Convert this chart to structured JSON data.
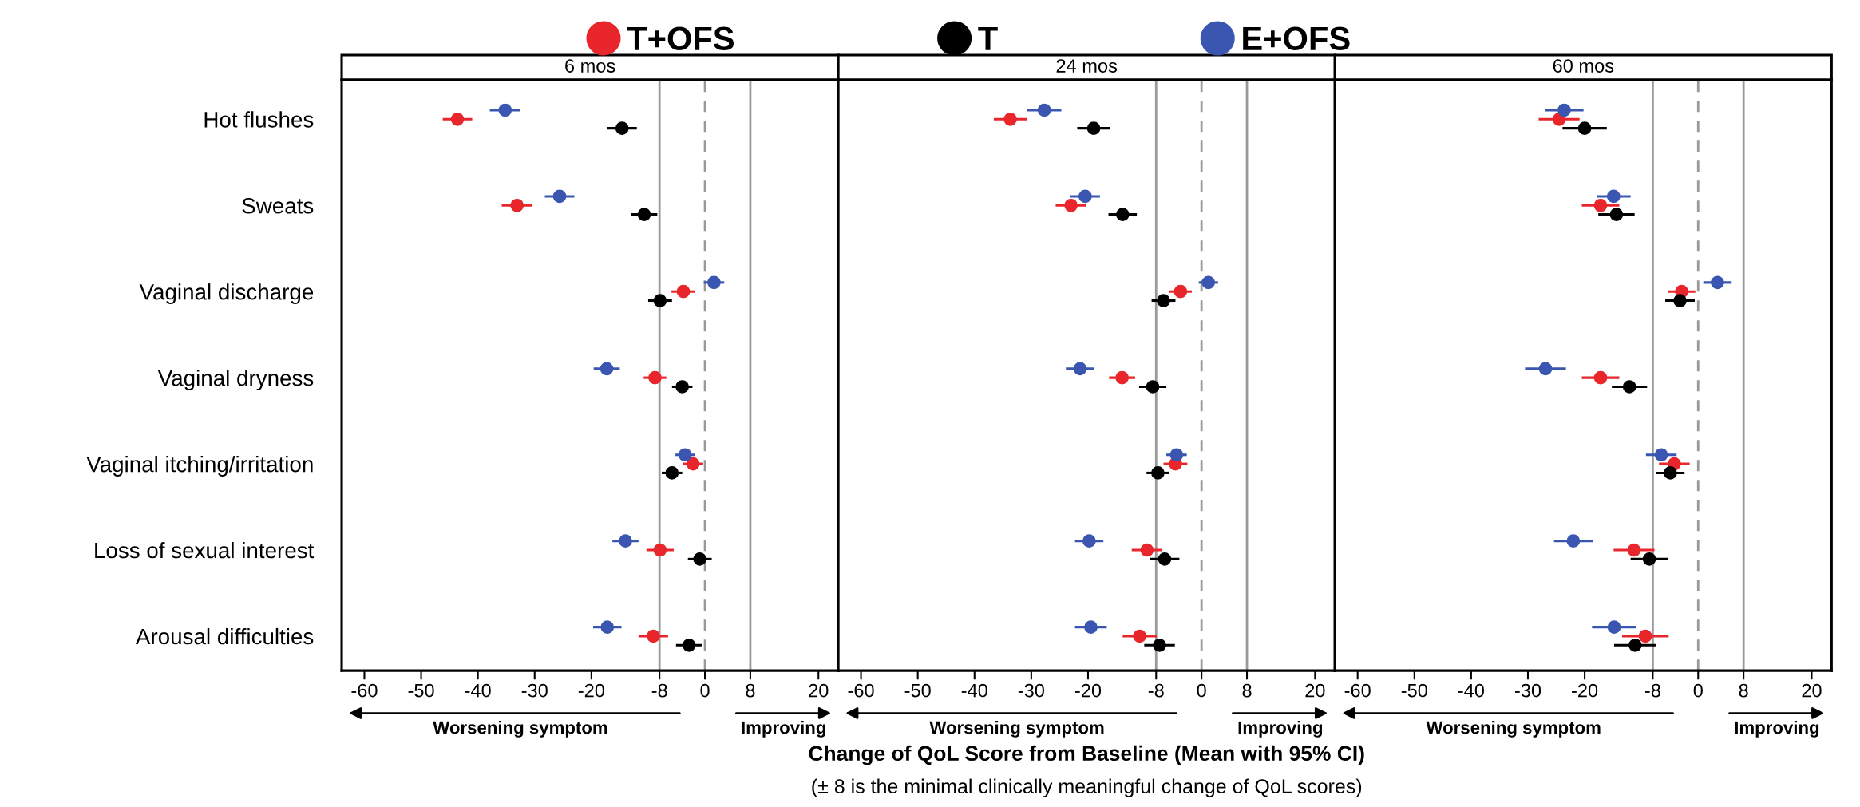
{
  "chart_data": [
    {
      "type": "scatter",
      "orientation": "horizontal",
      "title": "6 mos",
      "marker": "circle",
      "legend": "top",
      "categories": [
        "Hot flushes",
        "Sweats",
        "Vaginal discharge",
        "Vaginal dryness",
        "Vaginal itching/irritation",
        "Loss of sexual interest",
        "Arousal difficulties"
      ],
      "series": [
        {
          "name": "T+OFS",
          "color": "#e8262b",
          "values": [
            -43.6,
            -33.1,
            -3.8,
            -8.8,
            -2.1,
            -7.9,
            -9.1
          ],
          "errors": [
            2.6,
            2.7,
            2.1,
            2.0,
            1.8,
            2.4,
            2.6
          ]
        },
        {
          "name": "T",
          "color": "#000000",
          "values": [
            -14.6,
            -10.7,
            -7.9,
            -4.0,
            -5.8,
            -0.9,
            -2.8
          ],
          "errors": [
            2.6,
            2.3,
            2.1,
            1.8,
            1.8,
            2.1,
            2.3
          ]
        },
        {
          "name": "E+OFS",
          "color": "#3a56b0",
          "values": [
            -35.2,
            -25.6,
            1.6,
            -17.3,
            -3.5,
            -14.0,
            -17.2
          ],
          "errors": [
            2.7,
            2.6,
            1.8,
            2.3,
            1.7,
            2.3,
            2.5
          ]
        }
      ],
      "xlim": [
        -64,
        23.5
      ],
      "xticks": [
        -60,
        -50,
        -40,
        -30,
        -20,
        -8,
        0,
        8,
        20
      ],
      "ref_lines": [
        {
          "axis": "x",
          "value": -8,
          "color": "#999999"
        },
        {
          "axis": "x",
          "value": 0,
          "color": "#999999",
          "line_style": "dashed"
        },
        {
          "axis": "x",
          "value": 8,
          "color": "#999999"
        }
      ],
      "annotations": [
        "Worsening symptom",
        "Improving"
      ]
    },
    {
      "type": "scatter",
      "orientation": "horizontal",
      "title": "24 mos",
      "marker": "circle",
      "xlabel": "Change of QoL Score from Baseline (Mean with 95% CI)",
      "categories": [
        null,
        null,
        null,
        null,
        null,
        null,
        null
      ],
      "series": [
        {
          "color": "#e8262b",
          "values": [
            -33.7,
            -23.0,
            -3.7,
            -14.0,
            -4.6,
            -9.6,
            -10.9
          ],
          "errors": [
            2.9,
            2.7,
            2.0,
            2.3,
            2.1,
            2.7,
            3.0
          ]
        },
        {
          "color": "#000000",
          "values": [
            -19.0,
            -13.9,
            -6.7,
            -8.6,
            -7.7,
            -6.5,
            -7.4
          ],
          "errors": [
            2.9,
            2.5,
            2.1,
            2.4,
            2.0,
            2.6,
            2.7
          ]
        },
        {
          "color": "#3a56b0",
          "values": [
            -27.7,
            -20.5,
            1.2,
            -21.4,
            -4.4,
            -19.8,
            -19.5
          ],
          "errors": [
            3.0,
            2.6,
            1.7,
            2.5,
            1.8,
            2.5,
            2.8
          ]
        }
      ],
      "xlim": [
        -64,
        23.5
      ],
      "xticks": [
        -60,
        -50,
        -40,
        -30,
        -20,
        -8,
        0,
        8,
        20
      ],
      "ref_lines": [
        {
          "axis": "x",
          "value": -8,
          "color": "#999999"
        },
        {
          "axis": "x",
          "value": 0,
          "color": "#999999",
          "line_style": "dashed"
        },
        {
          "axis": "x",
          "value": 8,
          "color": "#999999"
        }
      ],
      "annotations": [
        "Worsening symptom",
        "Improving",
        "(± 8 is the minimal clinically meaningful change of QoL scores)"
      ]
    },
    {
      "type": "scatter",
      "orientation": "horizontal",
      "title": "60 mos",
      "marker": "circle",
      "categories": [
        null,
        null,
        null,
        null,
        null,
        null,
        null
      ],
      "series": [
        {
          "color": "#e8262b",
          "values": [
            -24.5,
            -17.2,
            -2.9,
            -17.2,
            -4.2,
            -11.3,
            -9.3
          ],
          "errors": [
            3.6,
            3.3,
            2.4,
            3.3,
            2.7,
            3.6,
            4.1
          ]
        },
        {
          "color": "#000000",
          "values": [
            -20.0,
            -14.4,
            -3.2,
            -12.1,
            -4.9,
            -8.6,
            -11.1
          ],
          "errors": [
            3.9,
            3.2,
            2.6,
            3.1,
            2.5,
            3.3,
            3.7
          ]
        },
        {
          "color": "#3a56b0",
          "values": [
            -23.6,
            -14.9,
            3.4,
            -26.9,
            -6.5,
            -22.0,
            -14.8
          ],
          "errors": [
            3.4,
            3.0,
            2.5,
            3.6,
            2.7,
            3.4,
            3.9
          ]
        }
      ],
      "xlim": [
        -64,
        23.5
      ],
      "xticks": [
        -60,
        -50,
        -40,
        -30,
        -20,
        -8,
        0,
        8,
        20
      ],
      "ref_lines": [
        {
          "axis": "x",
          "value": -8,
          "color": "#999999"
        },
        {
          "axis": "x",
          "value": 0,
          "color": "#999999",
          "line_style": "dashed"
        },
        {
          "axis": "x",
          "value": 8,
          "color": "#999999"
        }
      ],
      "annotations": [
        "Worsening symptom",
        "Improving"
      ]
    }
  ]
}
